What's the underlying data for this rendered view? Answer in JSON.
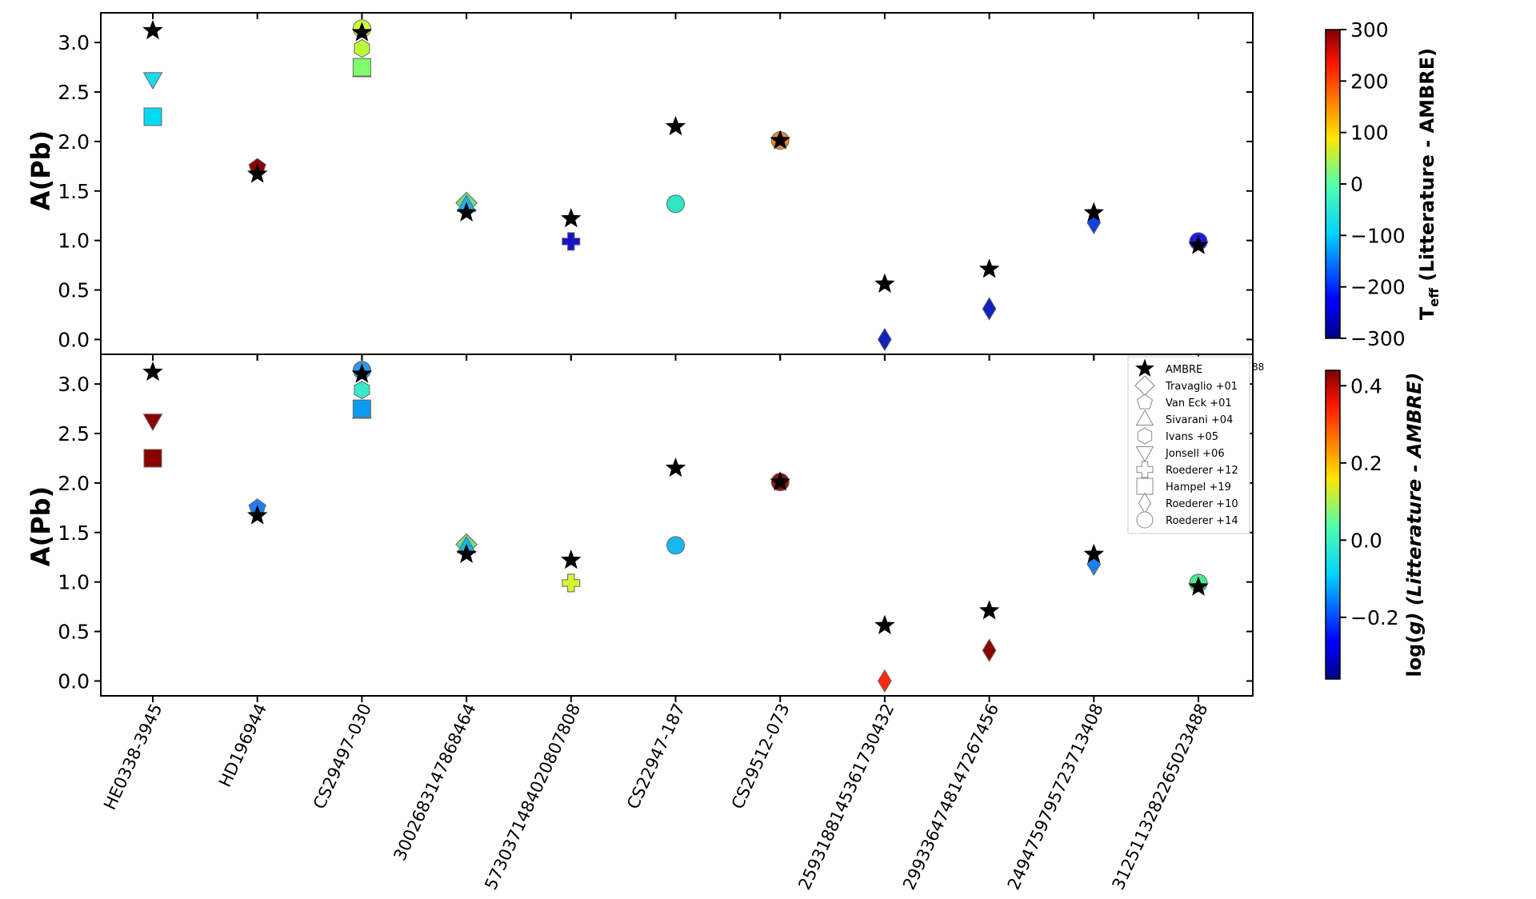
{
  "chart_data": {
    "type": "scatter",
    "categories": [
      "HE0338-3945",
      "HD196944",
      "CS29497-030",
      "3002683147868464",
      "5730371484020807808",
      "CS22947-187",
      "CS29512-073",
      "2593188145361730432",
      "2993364748147267456",
      "2494759795723713408",
      "3125113282265023488"
    ],
    "y_ticks": [
      "0.0",
      "0.5",
      "1.0",
      "1.5",
      "2.0",
      "2.5",
      "3.0"
    ],
    "ylim": [
      -0.15,
      3.3
    ],
    "panels": [
      {
        "ylabel": "A(Pb)",
        "colorbar": {
          "label_main": "T",
          "label_sub": "eff",
          "label_rest": " (Litterature - AMBRE)",
          "range": [
            -300,
            300
          ],
          "ticks": [
            "300",
            "200",
            "100",
            "0",
            "−100",
            "−200",
            "−300"
          ],
          "tick_values": [
            300,
            200,
            100,
            0,
            -100,
            -200,
            -300
          ]
        },
        "points": [
          {
            "cat": 0,
            "y": 3.12,
            "marker": "star",
            "color": "#000000"
          },
          {
            "cat": 0,
            "y": 2.63,
            "marker": "triangle-down",
            "color": "#1ad9e8"
          },
          {
            "cat": 0,
            "y": 2.25,
            "marker": "square",
            "color": "#00dbf0"
          },
          {
            "cat": 1,
            "y": 1.74,
            "marker": "pentagon",
            "color": "#8b0000"
          },
          {
            "cat": 1,
            "y": 1.67,
            "marker": "star",
            "color": "#000000"
          },
          {
            "cat": 2,
            "y": 2.72,
            "marker": "triangle",
            "color": "#1c1ca8"
          },
          {
            "cat": 2,
            "y": 2.75,
            "marker": "square",
            "color": "#7fff6b"
          },
          {
            "cat": 2,
            "y": 2.94,
            "marker": "hexagon",
            "color": "#b8ff3a"
          },
          {
            "cat": 2,
            "y": 3.14,
            "marker": "circle",
            "color": "#d0ff3a"
          },
          {
            "cat": 2,
            "y": 3.1,
            "marker": "star",
            "color": "#000000"
          },
          {
            "cat": 3,
            "y": 1.38,
            "marker": "diamond",
            "color": "#6fe08a"
          },
          {
            "cat": 3,
            "y": 1.36,
            "marker": "triangle",
            "color": "#1ab3e8"
          },
          {
            "cat": 3,
            "y": 1.28,
            "marker": "star",
            "color": "#000000"
          },
          {
            "cat": 4,
            "y": 0.99,
            "marker": "plus",
            "color": "#1515c8"
          },
          {
            "cat": 4,
            "y": 1.22,
            "marker": "star",
            "color": "#000000"
          },
          {
            "cat": 5,
            "y": 1.37,
            "marker": "circle",
            "color": "#2ee6c4"
          },
          {
            "cat": 5,
            "y": 2.15,
            "marker": "star",
            "color": "#000000"
          },
          {
            "cat": 6,
            "y": 2.01,
            "marker": "circle",
            "color": "#ee8a2a"
          },
          {
            "cat": 6,
            "y": 2.01,
            "marker": "star",
            "color": "#000000"
          },
          {
            "cat": 7,
            "y": 0.0,
            "marker": "thin-diamond",
            "color": "#1320c0"
          },
          {
            "cat": 7,
            "y": 0.56,
            "marker": "star",
            "color": "#000000"
          },
          {
            "cat": 8,
            "y": 0.31,
            "marker": "thin-diamond",
            "color": "#1320c0"
          },
          {
            "cat": 8,
            "y": 0.71,
            "marker": "star",
            "color": "#000000"
          },
          {
            "cat": 9,
            "y": 1.18,
            "marker": "thin-diamond",
            "color": "#1340e0"
          },
          {
            "cat": 9,
            "y": 1.28,
            "marker": "star",
            "color": "#000000"
          },
          {
            "cat": 10,
            "y": 0.99,
            "marker": "circle",
            "color": "#1a1ae8"
          },
          {
            "cat": 10,
            "y": 0.95,
            "marker": "star",
            "color": "#000000"
          }
        ]
      },
      {
        "ylabel": "A(Pb)",
        "colorbar": {
          "label_main": "log(",
          "label_sub": "",
          "label_rest": "g) (Litterature - AMBRE)",
          "range": [
            -0.36,
            0.44
          ],
          "ticks": [
            "0.4",
            "0.2",
            "0.0",
            "−0.2"
          ],
          "tick_values": [
            0.4,
            0.2,
            0.0,
            -0.2
          ]
        },
        "points": [
          {
            "cat": 0,
            "y": 3.12,
            "marker": "star",
            "color": "#000000"
          },
          {
            "cat": 0,
            "y": 2.63,
            "marker": "triangle-down",
            "color": "#8b0000"
          },
          {
            "cat": 0,
            "y": 2.25,
            "marker": "square",
            "color": "#8b0000"
          },
          {
            "cat": 1,
            "y": 1.75,
            "marker": "pentagon",
            "color": "#1e7ef0"
          },
          {
            "cat": 1,
            "y": 1.67,
            "marker": "star",
            "color": "#000000"
          },
          {
            "cat": 2,
            "y": 2.72,
            "marker": "triangle",
            "color": "#1c1ca8"
          },
          {
            "cat": 2,
            "y": 2.75,
            "marker": "square",
            "color": "#0a9cf0"
          },
          {
            "cat": 2,
            "y": 2.94,
            "marker": "hexagon",
            "color": "#3ae8c8"
          },
          {
            "cat": 2,
            "y": 3.14,
            "marker": "circle",
            "color": "#2e98e8"
          },
          {
            "cat": 2,
            "y": 3.1,
            "marker": "star",
            "color": "#000000"
          },
          {
            "cat": 3,
            "y": 1.38,
            "marker": "diamond",
            "color": "#6fe08a"
          },
          {
            "cat": 3,
            "y": 1.36,
            "marker": "triangle",
            "color": "#1ab3e8"
          },
          {
            "cat": 3,
            "y": 1.28,
            "marker": "star",
            "color": "#000000"
          },
          {
            "cat": 4,
            "y": 0.99,
            "marker": "plus",
            "color": "#d6f532"
          },
          {
            "cat": 4,
            "y": 1.22,
            "marker": "star",
            "color": "#000000"
          },
          {
            "cat": 5,
            "y": 1.37,
            "marker": "circle",
            "color": "#1ab8f0"
          },
          {
            "cat": 5,
            "y": 2.15,
            "marker": "star",
            "color": "#000000"
          },
          {
            "cat": 6,
            "y": 2.01,
            "marker": "circle",
            "color": "#9a0e10"
          },
          {
            "cat": 6,
            "y": 2.01,
            "marker": "star",
            "color": "#000000"
          },
          {
            "cat": 7,
            "y": 0.0,
            "marker": "thin-diamond",
            "color": "#ff2a0a"
          },
          {
            "cat": 7,
            "y": 0.56,
            "marker": "star",
            "color": "#000000"
          },
          {
            "cat": 8,
            "y": 0.31,
            "marker": "thin-diamond",
            "color": "#8b0000"
          },
          {
            "cat": 8,
            "y": 0.71,
            "marker": "star",
            "color": "#000000"
          },
          {
            "cat": 9,
            "y": 1.18,
            "marker": "thin-diamond",
            "color": "#1e80f0"
          },
          {
            "cat": 9,
            "y": 1.28,
            "marker": "star",
            "color": "#000000"
          },
          {
            "cat": 10,
            "y": 0.99,
            "marker": "circle",
            "color": "#4ee88e"
          },
          {
            "cat": 10,
            "y": 0.95,
            "marker": "star",
            "color": "#000000"
          }
        ]
      }
    ],
    "legend": {
      "position": "right",
      "entries": [
        {
          "label": "AMBRE",
          "marker": "star"
        },
        {
          "label": "Travaglio +01",
          "marker": "diamond"
        },
        {
          "label": "Van Eck +01",
          "marker": "pentagon"
        },
        {
          "label": "Sivarani +04",
          "marker": "triangle"
        },
        {
          "label": "Ivans +05",
          "marker": "hexagon"
        },
        {
          "label": "Jonsell +06",
          "marker": "triangle-down"
        },
        {
          "label": "Roederer +12",
          "marker": "plus"
        },
        {
          "label": "Hampel +19",
          "marker": "square"
        },
        {
          "label": "Roederer +10",
          "marker": "thin-diamond"
        },
        {
          "label": "Roederer +14",
          "marker": "circle"
        }
      ],
      "clipped_label": "88"
    }
  }
}
